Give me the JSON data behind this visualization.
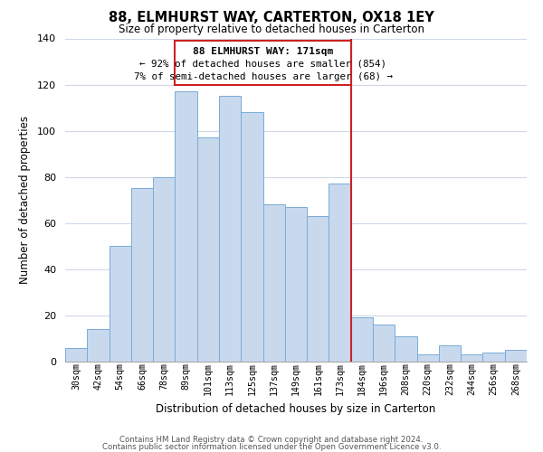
{
  "title": "88, ELMHURST WAY, CARTERTON, OX18 1EY",
  "subtitle": "Size of property relative to detached houses in Carterton",
  "xlabel": "Distribution of detached houses by size in Carterton",
  "ylabel": "Number of detached properties",
  "bar_labels": [
    "30sqm",
    "42sqm",
    "54sqm",
    "66sqm",
    "78sqm",
    "89sqm",
    "101sqm",
    "113sqm",
    "125sqm",
    "137sqm",
    "149sqm",
    "161sqm",
    "173sqm",
    "184sqm",
    "196sqm",
    "208sqm",
    "220sqm",
    "232sqm",
    "244sqm",
    "256sqm",
    "268sqm"
  ],
  "bar_values": [
    6,
    14,
    50,
    75,
    80,
    117,
    97,
    115,
    108,
    68,
    67,
    63,
    77,
    19,
    16,
    11,
    3,
    7,
    3,
    4,
    5
  ],
  "bar_color": "#c8d9ee",
  "bar_edge_color": "#7aacd6",
  "ylim": [
    0,
    140
  ],
  "yticks": [
    0,
    20,
    40,
    60,
    80,
    100,
    120,
    140
  ],
  "property_line_idx": 12,
  "property_line_label": "88 ELMHURST WAY: 171sqm",
  "annotation_smaller": "← 92% of detached houses are smaller (854)",
  "annotation_larger": "7% of semi-detached houses are larger (68) →",
  "annotation_box_color": "#ffffff",
  "annotation_border_color": "#cc2222",
  "vline_color": "#cc2222",
  "footer_line1": "Contains HM Land Registry data © Crown copyright and database right 2024.",
  "footer_line2": "Contains public sector information licensed under the Open Government Licence v3.0.",
  "background_color": "#ffffff",
  "grid_color": "#d0d8e8"
}
